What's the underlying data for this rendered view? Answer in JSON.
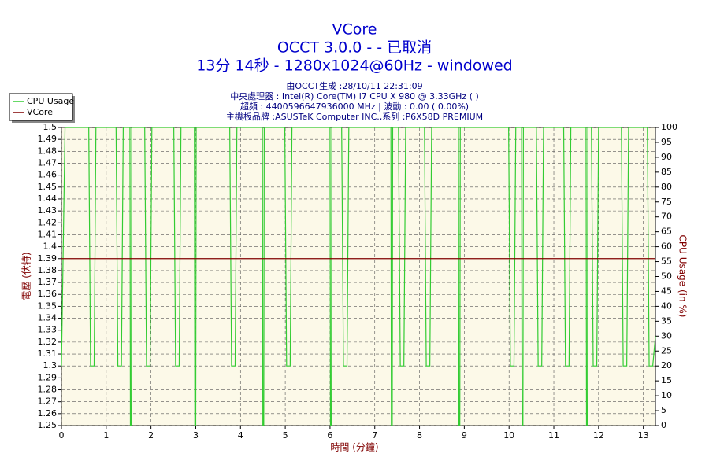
{
  "chart_data": {
    "type": "line",
    "title": "VCore",
    "subtitle": "OCCT 3.0.0 -  - 已取消",
    "subtitle2": "13分 14秒 - 1280x1024@60Hz - windowed",
    "info": [
      "由OCCT生成 :28/10/11 22:31:09",
      "中央處理器 : Intel(R) Core(TM) i7 CPU X 980 @ 3.33GHz (        )",
      "超頻 : 4400596647936000 MHz | 波動 : 0.00 ( 0.00%)",
      "主機板品牌 :ASUSTeK Computer INC.,系列 :P6X58D PREMIUM"
    ],
    "xlabel": "時間 (分鐘)",
    "ylabel": "電壓 (伏特)",
    "y2label": "CPU Usage (in %)",
    "legend": "upper left",
    "grid": true,
    "xlim": [
      0,
      13.27
    ],
    "xticks": [
      0,
      1,
      2,
      3,
      4,
      5,
      6,
      7,
      8,
      9,
      10,
      11,
      12,
      13
    ],
    "ylim": [
      1.25,
      1.5
    ],
    "yticks": [
      1.25,
      1.26,
      1.27,
      1.28,
      1.29,
      1.3,
      1.31,
      1.32,
      1.33,
      1.34,
      1.35,
      1.36,
      1.37,
      1.38,
      1.39,
      1.4,
      1.41,
      1.42,
      1.43,
      1.44,
      1.45,
      1.46,
      1.47,
      1.48,
      1.49,
      1.5
    ],
    "y2lim": [
      0,
      100
    ],
    "y2ticks": [
      0,
      5,
      10,
      15,
      20,
      25,
      30,
      35,
      40,
      45,
      50,
      55,
      60,
      65,
      70,
      75,
      80,
      85,
      90,
      95,
      100
    ],
    "series": [
      {
        "name": "CPU Usage",
        "color": "#33cc33",
        "axis": "y2",
        "x": [
          0,
          0.08,
          0.61,
          0.65,
          0.73,
          0.77,
          1.22,
          1.26,
          1.34,
          1.38,
          1.53,
          1.54,
          1.56,
          1.57,
          1.86,
          1.9,
          1.98,
          2.02,
          2.51,
          2.55,
          2.63,
          2.67,
          2.97,
          2.98,
          3.0,
          3.01,
          3.76,
          3.8,
          3.88,
          3.92,
          4.49,
          4.5,
          4.52,
          4.53,
          4.99,
          5.03,
          5.11,
          5.15,
          6.0,
          6.01,
          6.03,
          6.04,
          6.26,
          6.3,
          6.38,
          6.42,
          7.36,
          7.37,
          7.39,
          7.4,
          7.53,
          7.57,
          7.65,
          7.69,
          8.11,
          8.15,
          8.23,
          8.27,
          8.87,
          8.88,
          8.9,
          8.91,
          9.99,
          10.03,
          10.11,
          10.15,
          10.28,
          10.29,
          10.31,
          10.32,
          10.61,
          10.65,
          10.73,
          10.77,
          11.22,
          11.26,
          11.34,
          11.38,
          11.72,
          11.73,
          11.75,
          11.76,
          11.84,
          11.88,
          11.96,
          12.0,
          12.51,
          12.55,
          12.63,
          12.67,
          13.09,
          13.13,
          13.21,
          13.27
        ],
        "values": [
          20,
          100,
          100,
          20,
          20,
          100,
          100,
          20,
          20,
          100,
          100,
          0,
          0,
          100,
          100,
          20,
          20,
          100,
          100,
          20,
          20,
          100,
          100,
          0,
          0,
          100,
          100,
          20,
          20,
          100,
          100,
          0,
          0,
          100,
          100,
          20,
          20,
          100,
          100,
          0,
          0,
          100,
          100,
          20,
          20,
          100,
          100,
          0,
          0,
          100,
          100,
          20,
          20,
          100,
          100,
          20,
          20,
          100,
          100,
          0,
          0,
          100,
          100,
          20,
          20,
          100,
          100,
          0,
          0,
          100,
          100,
          20,
          20,
          100,
          100,
          20,
          20,
          100,
          100,
          0,
          0,
          100,
          100,
          20,
          20,
          100,
          100,
          20,
          20,
          100,
          100,
          20,
          20,
          30
        ]
      },
      {
        "name": "VCore",
        "color": "#800000",
        "x": [
          0,
          13.27
        ],
        "values": [
          1.39,
          1.39
        ]
      }
    ]
  }
}
